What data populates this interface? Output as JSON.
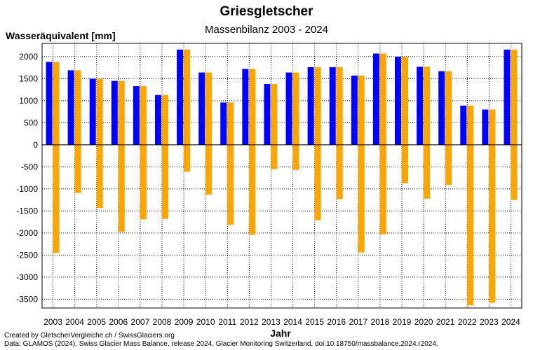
{
  "chart_data": {
    "type": "bar",
    "title": "Griesgletscher",
    "subtitle": "Massenbilanz 2003 - 2024",
    "ylabel": "Wasseräquivalent [mm]",
    "xlabel": "Jahr",
    "ylim": [
      -3700,
      2300
    ],
    "yticks": [
      2000,
      1500,
      1000,
      500,
      0,
      -500,
      -1000,
      -1500,
      -2000,
      -2500,
      -3000,
      -3500
    ],
    "grid": true,
    "categories": [
      "2003",
      "2004",
      "2005",
      "2006",
      "2007",
      "2008",
      "2009",
      "2010",
      "2011",
      "2012",
      "2013",
      "2014",
      "2015",
      "2016",
      "2017",
      "2018",
      "2019",
      "2020",
      "2021",
      "2022",
      "2023",
      "2024"
    ],
    "series": [
      {
        "color": "#0000ff",
        "values": [
          1880,
          1690,
          1500,
          1450,
          1330,
          1130,
          2160,
          1640,
          960,
          1720,
          1380,
          1640,
          1760,
          1760,
          1570,
          2070,
          2000,
          1770,
          1670,
          890,
          800,
          2160
        ],
        "second_values": [
          1880,
          1690,
          1500,
          1450,
          1330,
          1130,
          2160,
          1640,
          960,
          1720,
          1380,
          1640,
          1760,
          1760,
          1570,
          2070,
          2000,
          1770,
          1670,
          890,
          800,
          2160
        ]
      },
      {
        "color": "#ffa500",
        "values": [
          -2450,
          -1090,
          -1430,
          -1970,
          -1690,
          -1680,
          -610,
          -1130,
          -1810,
          -2040,
          -550,
          -570,
          -1710,
          -1230,
          -2440,
          -2030,
          -870,
          -1220,
          -910,
          -3640,
          -3580,
          -1250
        ]
      }
    ]
  },
  "credits": {
    "line1": "Created by GletscherVergleiche.ch / SwissGlaciers.org",
    "line2": "Data: GLAMOS (2024). Swiss Glacier Mass Balance, release 2024, Glacier Monitoring Switzerland, doi:10.18750/massbalance.2024.r2024."
  }
}
